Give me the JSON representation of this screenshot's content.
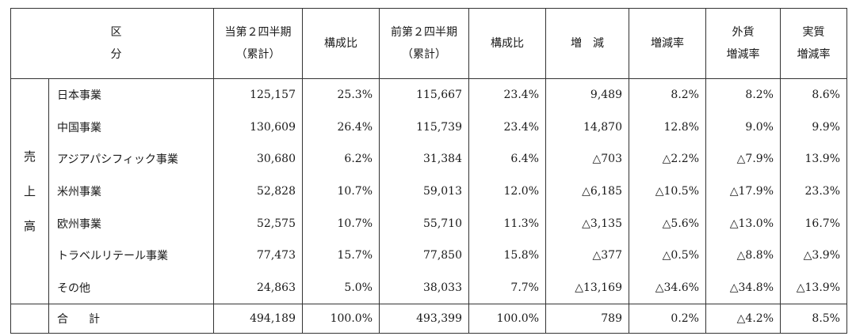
{
  "headers": {
    "category": "区　　分",
    "current_l1": "当第２四半期",
    "current_l2": "（累計）",
    "ratio1": "構成比",
    "prior_l1": "前第２四半期",
    "prior_l2": "（累計）",
    "ratio2": "構成比",
    "change": "増　減",
    "change_rate": "増減率",
    "fx_l1": "外貨",
    "fx_l2": "増減率",
    "real_l1": "実質",
    "real_l2": "増減率"
  },
  "group_label": [
    "売",
    "上",
    "高"
  ],
  "rows": [
    {
      "label": "日本事業",
      "cur": "125,157",
      "r1": "25.3%",
      "prev": "115,667",
      "r2": "23.4%",
      "chg": "9,489",
      "rate": "8.2%",
      "fx": "8.2%",
      "real": "8.6%"
    },
    {
      "label": "中国事業",
      "cur": "130,609",
      "r1": "26.4%",
      "prev": "115,739",
      "r2": "23.4%",
      "chg": "14,870",
      "rate": "12.8%",
      "fx": "9.0%",
      "real": "9.9%"
    },
    {
      "label": "アジアパシフィック事業",
      "cur": "30,680",
      "r1": "6.2%",
      "prev": "31,384",
      "r2": "6.4%",
      "chg": "△703",
      "rate": "△2.2%",
      "fx": "△7.9%",
      "real": "13.9%"
    },
    {
      "label": "米州事業",
      "cur": "52,828",
      "r1": "10.7%",
      "prev": "59,013",
      "r2": "12.0%",
      "chg": "△6,185",
      "rate": "△10.5%",
      "fx": "△17.9%",
      "real": "23.3%"
    },
    {
      "label": "欧州事業",
      "cur": "52,575",
      "r1": "10.7%",
      "prev": "55,710",
      "r2": "11.3%",
      "chg": "△3,135",
      "rate": "△5.6%",
      "fx": "△13.0%",
      "real": "16.7%"
    },
    {
      "label": "トラベルリテール事業",
      "cur": "77,473",
      "r1": "15.7%",
      "prev": "77,850",
      "r2": "15.8%",
      "chg": "△377",
      "rate": "△0.5%",
      "fx": "△8.8%",
      "real": "△3.9%"
    },
    {
      "label": "その他",
      "cur": "24,863",
      "r1": "5.0%",
      "prev": "38,033",
      "r2": "7.7%",
      "chg": "△13,169",
      "rate": "△34.6%",
      "fx": "△34.8%",
      "real": "△13.9%"
    }
  ],
  "total": {
    "label": "合計",
    "cur": "494,189",
    "r1": "100.0%",
    "prev": "493,399",
    "r2": "100.0%",
    "chg": "789",
    "rate": "0.2%",
    "fx": "△4.2%",
    "real": "8.5%"
  }
}
